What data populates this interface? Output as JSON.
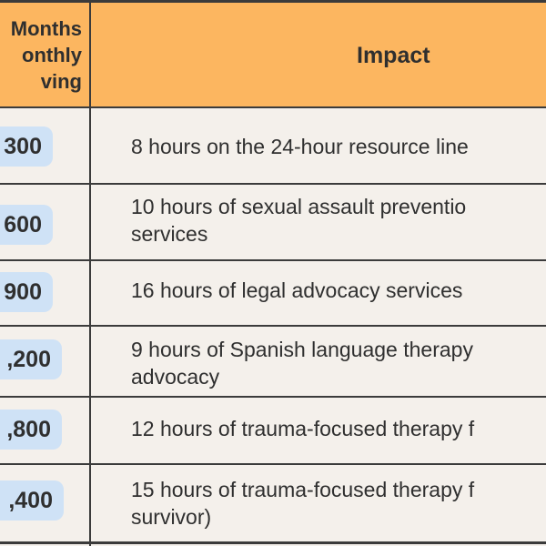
{
  "header": {
    "col1_lines": [
      "Months",
      "onthly",
      "ving"
    ],
    "col2": "Impact"
  },
  "rows": [
    {
      "amount": "300",
      "impact": [
        "8 hours on the 24-hour resource line"
      ]
    },
    {
      "amount": "600",
      "impact": [
        "10 hours of sexual assault preventio",
        "services"
      ]
    },
    {
      "amount": "900",
      "impact": [
        "16 hours of legal advocacy services"
      ]
    },
    {
      "amount": ",200",
      "impact": [
        "9 hours of Spanish language therapy",
        "advocacy"
      ]
    },
    {
      "amount": ",800",
      "impact": [
        "12 hours of trauma-focused therapy f"
      ]
    },
    {
      "amount": ",400",
      "impact": [
        "15 hours of trauma-focused therapy f",
        "survivor)"
      ]
    }
  ],
  "colors": {
    "header_bg": "#fcb660",
    "body_bg": "#f4f0eb",
    "badge_bg": "#cfe2f6",
    "line": "#3b3b3b"
  }
}
